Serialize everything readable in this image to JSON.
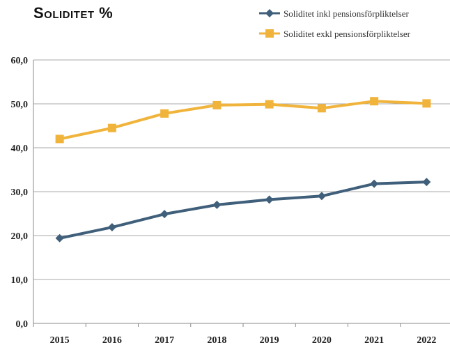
{
  "chart_data": {
    "type": "line",
    "title": "Soliditet %",
    "xlabel": "",
    "ylabel": "",
    "x": [
      "2015",
      "2016",
      "2017",
      "2018",
      "2019",
      "2020",
      "2021",
      "2022"
    ],
    "ylim": [
      0,
      60
    ],
    "yticks": [
      "0,0",
      "10,0",
      "20,0",
      "30,0",
      "40,0",
      "50,0",
      "60,0"
    ],
    "grid": true,
    "legend_position": "top-right",
    "series": [
      {
        "name": "Soliditet inkl pensionsförpliktelser",
        "color": "#3f5f7a",
        "marker": "diamond",
        "values": [
          19.4,
          21.9,
          24.9,
          27.0,
          28.2,
          29.0,
          31.8,
          32.2
        ]
      },
      {
        "name": "Soliditet exkl pensionsförpliktelser",
        "color": "#f0b43c",
        "marker": "square",
        "values": [
          42.0,
          44.5,
          47.8,
          49.7,
          49.9,
          49.0,
          50.6,
          50.1
        ]
      }
    ]
  }
}
